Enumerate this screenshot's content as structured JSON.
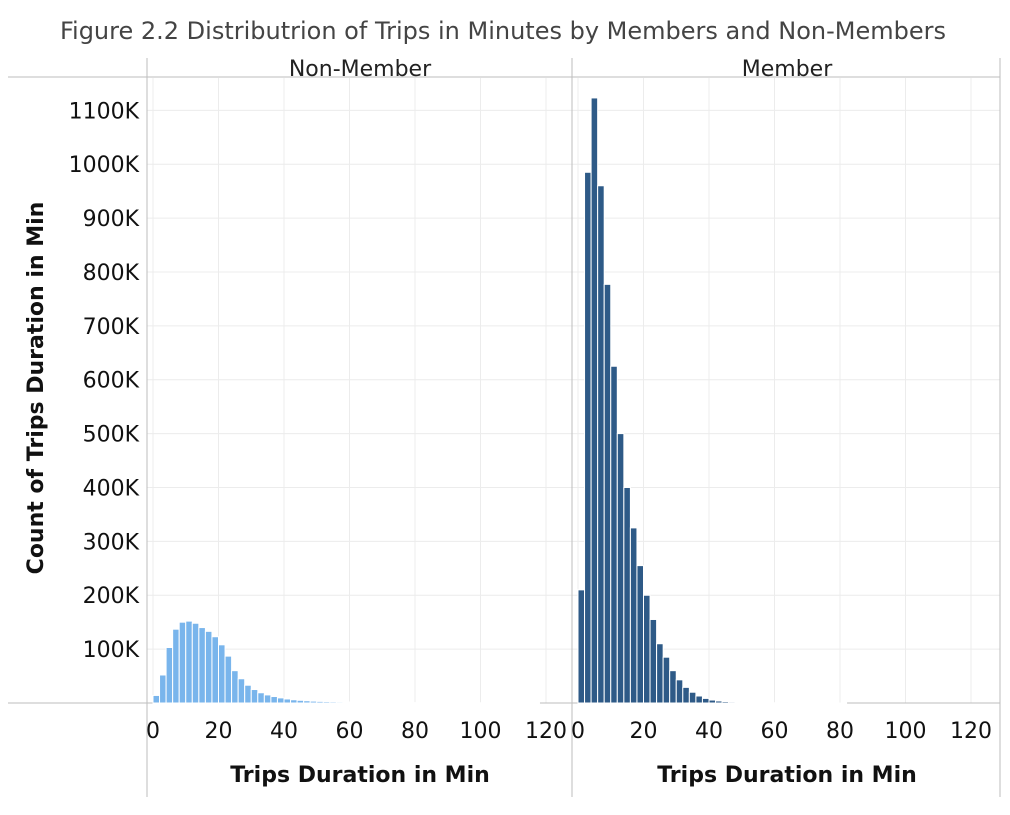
{
  "chart_data": {
    "type": "bar",
    "title": "Figure 2.2 Distributrion of Trips in Minutes by Members and Non-Members",
    "ylabel": "Count of Trips Duration in Min",
    "xlabel": "Trips Duration in Min",
    "ylim": [
      0,
      1160000
    ],
    "y_ticks": [
      "100K",
      "200K",
      "300K",
      "400K",
      "500K",
      "600K",
      "700K",
      "800K",
      "900K",
      "1000K",
      "1100K"
    ],
    "y_tick_values": [
      100000,
      200000,
      300000,
      400000,
      500000,
      600000,
      700000,
      800000,
      900000,
      1000000,
      1100000
    ],
    "xlim": [
      -2,
      127
    ],
    "x_ticks": [
      "0",
      "20",
      "40",
      "60",
      "80",
      "100",
      "120"
    ],
    "x_tick_values": [
      0,
      20,
      40,
      60,
      80,
      100,
      120
    ],
    "bin_width_min": 2,
    "panes": [
      {
        "name": "Non-Member",
        "color": "#79b5ec",
        "bins": [
          0,
          2,
          4,
          6,
          8,
          10,
          12,
          14,
          16,
          18,
          20,
          22,
          24,
          26,
          28,
          30,
          32,
          34,
          36,
          38,
          40,
          42,
          44,
          46,
          48,
          50,
          52,
          54,
          56,
          58,
          60,
          62,
          64,
          66,
          68,
          70,
          72,
          74,
          76,
          78,
          80,
          82,
          84,
          86,
          88,
          90,
          92,
          94,
          96,
          98,
          100,
          102,
          104,
          106,
          108,
          110,
          112,
          114,
          116
        ],
        "values": [
          14000,
          52000,
          103000,
          137000,
          150000,
          152000,
          148000,
          140000,
          133000,
          123000,
          108000,
          87000,
          60000,
          45000,
          33000,
          25000,
          19000,
          15000,
          12000,
          9500,
          7500,
          6000,
          5000,
          4200,
          3500,
          3000,
          2600,
          2300,
          2000,
          1800,
          1600,
          1400,
          1200,
          1100,
          1000,
          900,
          800,
          700,
          650,
          600,
          550,
          500,
          450,
          400,
          380,
          350,
          330,
          300,
          280,
          260,
          240,
          220,
          200,
          180,
          160,
          150,
          140,
          120,
          100
        ]
      },
      {
        "name": "Member",
        "color": "#2e5a87",
        "bins": [
          0,
          2,
          4,
          6,
          8,
          10,
          12,
          14,
          16,
          18,
          20,
          22,
          24,
          26,
          28,
          30,
          32,
          34,
          36,
          38,
          40,
          42,
          44,
          46,
          48,
          50,
          52,
          54,
          56,
          58,
          60,
          62,
          64,
          66,
          68,
          70,
          72,
          74,
          76,
          78,
          80
        ],
        "values": [
          210000,
          985000,
          1123000,
          960000,
          777000,
          625000,
          500000,
          400000,
          325000,
          255000,
          200000,
          155000,
          110000,
          85000,
          60000,
          43000,
          29000,
          20000,
          13000,
          8500,
          5500,
          3800,
          2700,
          2000,
          1500,
          1100,
          800,
          600,
          450,
          350,
          250,
          200,
          150,
          120,
          100,
          80,
          60,
          50,
          40,
          30,
          20
        ]
      }
    ]
  }
}
